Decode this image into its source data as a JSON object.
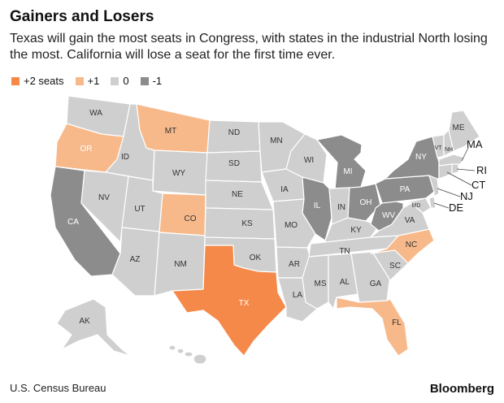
{
  "title": "Gainers and Losers",
  "subtitle": "Texas will gain the most seats in Congress, with states in the industrial North losing the most. California will lose a seat for the first time ever.",
  "legend": [
    {
      "label": "+2 seats",
      "color": "#f5894a"
    },
    {
      "label": "+1",
      "color": "#f7b98a"
    },
    {
      "label": "0",
      "color": "#cfcfcf"
    },
    {
      "label": "-1",
      "color": "#8c8c8c"
    }
  ],
  "states": {
    "WA": "WA",
    "OR": "OR",
    "CA": "CA",
    "ID": "ID",
    "NV": "NV",
    "MT": "MT",
    "WY": "WY",
    "UT": "UT",
    "AZ": "AZ",
    "CO": "CO",
    "NM": "NM",
    "ND": "ND",
    "SD": "SD",
    "NE": "NE",
    "KS": "KS",
    "OK": "OK",
    "TX": "TX",
    "MN": "MN",
    "IA": "IA",
    "MO": "MO",
    "AR": "AR",
    "LA": "LA",
    "WI": "WI",
    "IL": "IL",
    "MI": "MI",
    "IN": "IN",
    "OH": "OH",
    "KY": "KY",
    "TN": "TN",
    "MS": "MS",
    "AL": "AL",
    "GA": "GA",
    "FL": "FL",
    "SC": "SC",
    "NC": "NC",
    "VA": "VA",
    "WV": "WV",
    "PA": "PA",
    "NY": "NY",
    "VT": "VT",
    "NH": "NH",
    "ME": "ME",
    "MA": "MA",
    "RI": "RI",
    "CT": "CT",
    "NJ": "NJ",
    "DE": "DE",
    "MD": "MD",
    "AK": "AK",
    "HI": "HI"
  },
  "source": "U.S. Census Bureau",
  "brand": "Bloomberg"
}
